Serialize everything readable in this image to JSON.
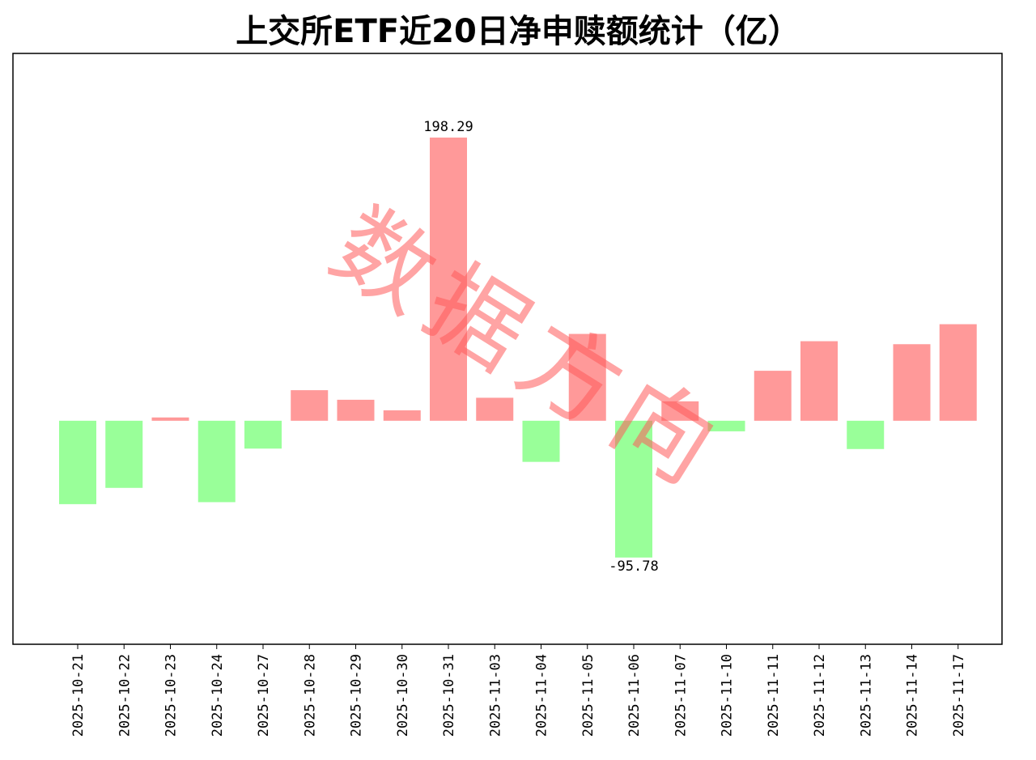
{
  "chart_data": {
    "type": "bar",
    "title": "上交所ETF近20日净申赎额统计（亿）",
    "categories": [
      "2025-10-21",
      "2025-10-22",
      "2025-10-23",
      "2025-10-24",
      "2025-10-27",
      "2025-10-28",
      "2025-10-29",
      "2025-10-30",
      "2025-10-31",
      "2025-11-03",
      "2025-11-04",
      "2025-11-05",
      "2025-11-06",
      "2025-11-07",
      "2025-11-10",
      "2025-11-11",
      "2025-11-12",
      "2025-11-13",
      "2025-11-14",
      "2025-11-17"
    ],
    "values": [
      -58.4,
      -47.0,
      2.3,
      -57.0,
      -19.5,
      21.4,
      14.7,
      7.3,
      198.29,
      16.1,
      -28.8,
      60.8,
      -95.78,
      13.6,
      -7.4,
      35.0,
      55.7,
      -19.8,
      53.6,
      67.6
    ],
    "data_labels": [
      {
        "category": "2025-10-31",
        "text": "198.29"
      },
      {
        "category": "2025-11-06",
        "text": "-95.78"
      }
    ],
    "ylim": [
      -156.5,
      257.2
    ],
    "xlabel": "",
    "ylabel": "",
    "grid": false,
    "legend": "none",
    "colors": {
      "positive": "#ff9999",
      "negative": "#99ff99"
    }
  },
  "watermark": {
    "text": "数据方向",
    "color": "#ff5a5a"
  }
}
